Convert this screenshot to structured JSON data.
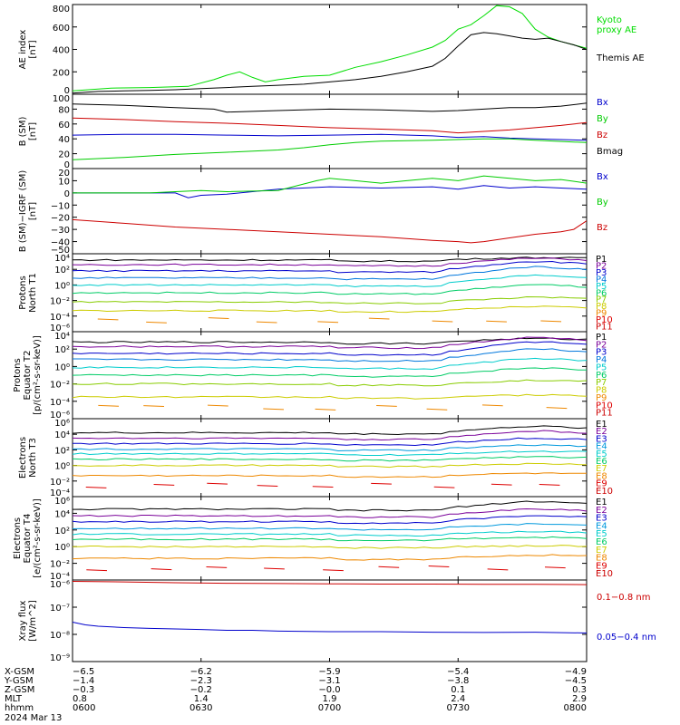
{
  "chart_data": {
    "type": "line",
    "time_ticks": [
      "0600",
      "0630",
      "0700",
      "0730",
      "0800"
    ],
    "time_tick_hours": [
      6.0,
      6.5,
      7.0,
      7.5,
      8.0
    ],
    "xlim": [
      6.0,
      8.0
    ],
    "date_label": "2024 Mar 13",
    "panels": [
      {
        "id": "ae",
        "ylabel": [
          "AE index",
          "[nT]"
        ],
        "scale": "linear",
        "ylim": [
          0,
          800
        ],
        "yticks": [
          0,
          200,
          400,
          600,
          800
        ],
        "ytick_labels": [
          "0",
          "200",
          "400",
          "600",
          "800"
        ],
        "series": [
          {
            "name": "Kyoto\nproxy AE",
            "color": "#00dd00",
            "x": [
              6.0,
              6.15,
              6.3,
              6.45,
              6.55,
              6.6,
              6.65,
              6.7,
              6.75,
              6.8,
              6.9,
              7.0,
              7.1,
              7.2,
              7.3,
              7.4,
              7.45,
              7.5,
              7.55,
              7.6,
              7.65,
              7.7,
              7.75,
              7.8,
              7.85,
              7.9,
              7.95,
              8.0
            ],
            "y": [
              30,
              55,
              60,
              70,
              130,
              170,
              200,
              150,
              110,
              130,
              160,
              170,
              240,
              290,
              350,
              420,
              480,
              580,
              620,
              700,
              790,
              780,
              720,
              580,
              510,
              470,
              440,
              410
            ]
          },
          {
            "name": "Themis AE",
            "color": "#000000",
            "x": [
              6.0,
              6.1,
              6.2,
              6.3,
              6.4,
              6.5,
              6.6,
              6.7,
              6.8,
              6.9,
              7.0,
              7.1,
              7.2,
              7.3,
              7.4,
              7.45,
              7.5,
              7.55,
              7.6,
              7.65,
              7.7,
              7.75,
              7.8,
              7.85,
              7.9,
              7.95,
              8.0
            ],
            "y": [
              10,
              25,
              30,
              35,
              40,
              50,
              60,
              70,
              80,
              90,
              110,
              130,
              160,
              200,
              250,
              320,
              430,
              530,
              550,
              540,
              520,
              500,
              490,
              500,
              470,
              440,
              400
            ]
          }
        ]
      },
      {
        "id": "bgsm",
        "ylabel": [
          "B (SM)",
          "[nT]"
        ],
        "scale": "linear",
        "ylim": [
          0,
          100
        ],
        "yticks": [
          0,
          20,
          40,
          60,
          80,
          100
        ],
        "ytick_labels": [
          "0",
          "20",
          "40",
          "60",
          "80",
          "100"
        ],
        "series": [
          {
            "name": "Bx",
            "color": "#0000cc",
            "x": [
              6.0,
              6.2,
              6.4,
              6.6,
              6.8,
              7.0,
              7.2,
              7.4,
              7.5,
              7.6,
              7.7,
              7.8,
              7.9,
              8.0
            ],
            "y": [
              45,
              46,
              46,
              45,
              44,
              45,
              46,
              44,
              42,
              43,
              41,
              40,
              39,
              38
            ]
          },
          {
            "name": "By",
            "color": "#00cc00",
            "x": [
              6.0,
              6.2,
              6.4,
              6.6,
              6.8,
              6.9,
              7.0,
              7.1,
              7.2,
              7.4,
              7.6,
              7.7,
              7.8,
              8.0
            ],
            "y": [
              12,
              15,
              19,
              22,
              25,
              28,
              32,
              35,
              37,
              38,
              40,
              40,
              38,
              35
            ]
          },
          {
            "name": "Bz",
            "color": "#cc0000",
            "x": [
              6.0,
              6.2,
              6.4,
              6.6,
              6.8,
              7.0,
              7.2,
              7.4,
              7.5,
              7.6,
              7.7,
              7.8,
              7.9,
              8.0
            ],
            "y": [
              68,
              66,
              63,
              61,
              58,
              55,
              53,
              51,
              48,
              50,
              52,
              55,
              58,
              62
            ]
          },
          {
            "name": "Bmag",
            "color": "#000000",
            "x": [
              6.0,
              6.2,
              6.4,
              6.55,
              6.6,
              6.8,
              7.0,
              7.2,
              7.4,
              7.5,
              7.6,
              7.7,
              7.8,
              7.9,
              8.0
            ],
            "y": [
              87,
              85,
              82,
              80,
              76,
              78,
              80,
              79,
              77,
              78,
              80,
              82,
              82,
              84,
              88
            ]
          }
        ]
      },
      {
        "id": "bigrf",
        "ylabel": [
          "B (SM)−IGRF (SM)",
          "[nT]"
        ],
        "scale": "linear",
        "ylim": [
          -50,
          20
        ],
        "yticks": [
          -50,
          -40,
          -30,
          -20,
          -10,
          0,
          10,
          20
        ],
        "ytick_labels": [
          "−50",
          "−40",
          "−30",
          "−20",
          "−10",
          "0",
          "10",
          "20"
        ],
        "series": [
          {
            "name": "Bx",
            "color": "#0000cc",
            "x": [
              6.0,
              6.3,
              6.4,
              6.45,
              6.5,
              6.6,
              6.8,
              7.0,
              7.2,
              7.4,
              7.5,
              7.6,
              7.7,
              7.8,
              7.9,
              8.0
            ],
            "y": [
              0,
              0,
              0,
              -4,
              -2,
              -1,
              3,
              5,
              4,
              5,
              3,
              6,
              4,
              5,
              4,
              3
            ]
          },
          {
            "name": "By",
            "color": "#00cc00",
            "x": [
              6.0,
              6.3,
              6.4,
              6.5,
              6.6,
              6.8,
              6.95,
              7.0,
              7.1,
              7.2,
              7.3,
              7.4,
              7.5,
              7.6,
              7.7,
              7.8,
              7.9,
              8.0
            ],
            "y": [
              0,
              0,
              1,
              2,
              1,
              2,
              10,
              12,
              10,
              8,
              10,
              12,
              10,
              14,
              12,
              10,
              11,
              8
            ]
          },
          {
            "name": "Bz",
            "color": "#cc0000",
            "x": [
              6.0,
              6.2,
              6.4,
              6.6,
              6.8,
              7.0,
              7.2,
              7.4,
              7.5,
              7.55,
              7.6,
              7.7,
              7.8,
              7.9,
              7.95,
              8.0
            ],
            "y": [
              -22,
              -25,
              -28,
              -30,
              -32,
              -34,
              -36,
              -39,
              -40,
              -41,
              -40,
              -37,
              -34,
              -32,
              -30,
              -23
            ]
          }
        ]
      },
      {
        "id": "protons_t1",
        "ylabel": [
          "Protons",
          "North T1"
        ],
        "scale": "log",
        "ylim": [
          -6,
          4
        ],
        "yticks": [
          -6,
          -4,
          -2,
          0,
          2,
          4
        ],
        "ytick_labels": [
          "10⁻⁶",
          "10⁻⁴",
          "10⁻²",
          "10⁰",
          "10²",
          "10⁴"
        ],
        "legend": [
          "P1",
          "P2",
          "P3",
          "P4",
          "P5",
          "P6",
          "P7",
          "P8",
          "P9",
          "P10",
          "P11"
        ],
        "legend_colors": [
          "#000000",
          "#7a0099",
          "#0000cc",
          "#0077dd",
          "#00cccc",
          "#00cc66",
          "#88cc00",
          "#cccc00",
          "#ee8800",
          "#dd0000",
          "#cc0000"
        ],
        "levels": [
          3.2,
          2.6,
          1.8,
          0.9,
          0.0,
          -1.0,
          -2.2,
          -3.3
        ],
        "bump": [
          0.3,
          0.8,
          1.2,
          1.4,
          1.2,
          1.0,
          0.6,
          0.5
        ]
      },
      {
        "id": "protons_t2",
        "ylabel": [
          "Protons",
          "Equator T2",
          "[p/(cm²-s-sr-keV)]"
        ],
        "scale": "log",
        "ylim": [
          -6,
          4
        ],
        "yticks": [
          -6,
          -4,
          -2,
          0,
          2,
          4
        ],
        "ytick_labels": [
          "10⁻⁶",
          "10⁻⁴",
          "10⁻²",
          "10⁰",
          "10²",
          "10⁴"
        ],
        "legend": [
          "P1",
          "P2",
          "P3",
          "P4",
          "P5",
          "P6",
          "P7",
          "P8",
          "P9",
          "P10",
          "P11"
        ],
        "legend_colors": [
          "#000000",
          "#7a0099",
          "#0000cc",
          "#0077dd",
          "#00cccc",
          "#00cc66",
          "#88cc00",
          "#cccc00",
          "#ee8800",
          "#dd0000",
          "#cc0000"
        ],
        "levels": [
          2.8,
          2.3,
          1.5,
          0.8,
          -0.1,
          -1.0,
          -2.0,
          -3.5
        ],
        "bump": [
          0.4,
          1.0,
          1.3,
          1.2,
          1.0,
          0.8,
          0.4,
          0.2
        ]
      },
      {
        "id": "electrons_t3",
        "ylabel": [
          "Electrons",
          "North T3"
        ],
        "scale": "log",
        "ylim": [
          -4,
          6
        ],
        "yticks": [
          -4,
          -2,
          0,
          2,
          4,
          6
        ],
        "ytick_labels": [
          "10⁻⁴",
          "10⁻²",
          "10⁰",
          "10²",
          "10⁴",
          "10⁶"
        ],
        "legend": [
          "E1",
          "E2",
          "E3",
          "E4",
          "E5",
          "E6",
          "E7",
          "E8",
          "E9",
          "E10"
        ],
        "legend_colors": [
          "#000000",
          "#7a0099",
          "#0000cc",
          "#0099dd",
          "#00cccc",
          "#00cc66",
          "#cccc00",
          "#ee8800",
          "#dd0000",
          "#cc0000"
        ],
        "levels": [
          4.2,
          3.5,
          2.8,
          2.1,
          1.5,
          0.8,
          0.0,
          -1.3
        ],
        "bump": [
          0.8,
          0.9,
          0.7,
          0.5,
          0.3,
          0.3,
          0.2,
          0.3
        ]
      },
      {
        "id": "electrons_t4",
        "ylabel": [
          "Electrons",
          "Equator T4",
          "[e/(cm²-s-sr-keV)]"
        ],
        "scale": "log",
        "ylim": [
          -4,
          6
        ],
        "yticks": [
          -4,
          -2,
          0,
          2,
          4,
          6
        ],
        "ytick_labels": [
          "10⁻⁴",
          "10⁻²",
          "10⁰",
          "10²",
          "10⁴",
          "10⁶"
        ],
        "legend": [
          "E1",
          "E2",
          "E3",
          "E4",
          "E5",
          "E6",
          "E7",
          "E8",
          "E9",
          "E10"
        ],
        "legend_colors": [
          "#000000",
          "#7a0099",
          "#0000cc",
          "#0099dd",
          "#00cccc",
          "#00cc66",
          "#cccc00",
          "#ee8800",
          "#dd0000",
          "#cc0000"
        ],
        "levels": [
          4.5,
          3.7,
          3.0,
          2.2,
          1.5,
          0.9,
          0.0,
          -1.4
        ],
        "bump": [
          0.9,
          0.8,
          0.7,
          0.5,
          0.3,
          0.2,
          0.1,
          0.4
        ]
      },
      {
        "id": "xray",
        "ylabel": [
          "Xray flux",
          "[W/m^2]"
        ],
        "scale": "log",
        "ylim": [
          -9,
          -6
        ],
        "yticks": [
          -9,
          -8,
          -7,
          -6
        ],
        "ytick_labels": [
          "10⁻⁹",
          "10⁻⁸",
          "10⁻⁷",
          "10⁻⁶"
        ],
        "series": [
          {
            "name": "0.1−0.8 nm",
            "color": "#cc0000",
            "x": [
              6.0,
              6.2,
              6.4,
              6.6,
              6.8,
              7.0,
              7.2,
              7.4,
              7.6,
              7.8,
              8.0
            ],
            "y": [
              -6.05,
              -6.07,
              -6.1,
              -6.12,
              -6.13,
              -6.14,
              -6.15,
              -6.15,
              -6.16,
              -6.16,
              -6.17
            ]
          },
          {
            "name": "0.05−0.4 nm",
            "color": "#0000cc",
            "x": [
              6.0,
              6.05,
              6.1,
              6.2,
              6.3,
              6.4,
              6.5,
              6.6,
              6.7,
              6.8,
              7.0,
              7.2,
              7.4,
              7.6,
              7.8,
              8.0
            ],
            "y": [
              -7.55,
              -7.65,
              -7.7,
              -7.75,
              -7.78,
              -7.8,
              -7.82,
              -7.85,
              -7.85,
              -7.88,
              -7.9,
              -7.9,
              -7.92,
              -7.93,
              -7.92,
              -7.95
            ]
          }
        ]
      }
    ],
    "ephemeris": {
      "rows": [
        {
          "label": "X-GSM",
          "values": [
            "−6.5",
            "−6.2",
            "−5.9",
            "−5.4",
            "−4.9"
          ]
        },
        {
          "label": "Y-GSM",
          "values": [
            "−1.4",
            "−2.3",
            "−3.1",
            "−3.8",
            "−4.5"
          ]
        },
        {
          "label": "Z-GSM",
          "values": [
            "−0.3",
            "−0.2",
            "−0.0",
            "0.1",
            "0.3"
          ]
        },
        {
          "label": "MLT",
          "values": [
            "0.8",
            "1.4",
            "1.9",
            "2.4",
            "2.9"
          ]
        },
        {
          "label": "hhmm",
          "values": [
            "0600",
            "0630",
            "0700",
            "0730",
            "0800"
          ]
        }
      ]
    }
  }
}
